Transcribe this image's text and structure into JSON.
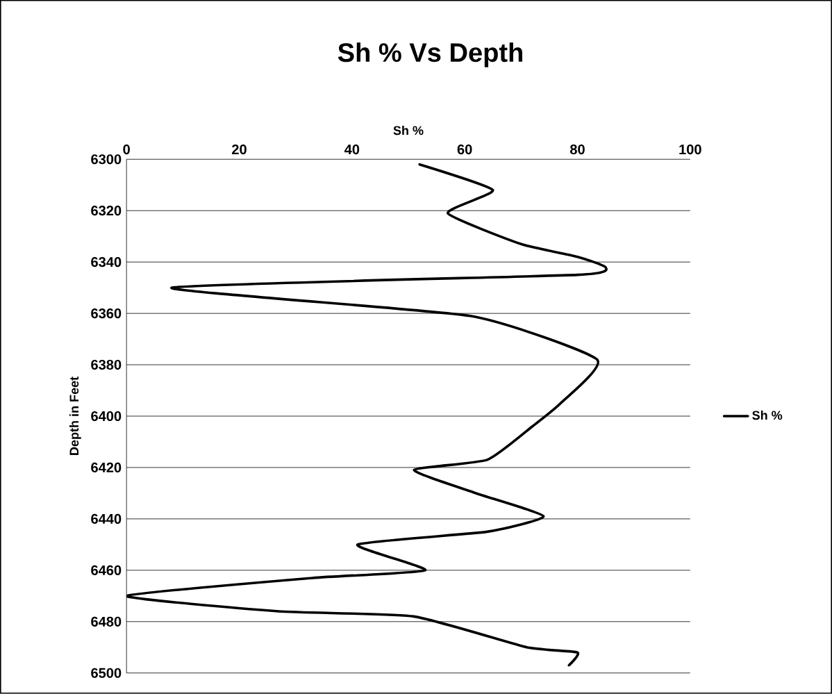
{
  "chart_data": {
    "type": "line",
    "title": "Sh % Vs Depth",
    "xlabel": "Sh %",
    "ylabel": "Depth in Feet",
    "series": [
      {
        "name": "Sh %",
        "color": "#000000",
        "x": [
          52,
          65,
          57,
          70,
          80,
          85,
          80,
          8,
          61,
          83.5,
          77,
          72,
          64,
          51,
          62,
          74,
          64,
          41,
          53,
          33,
          0,
          27,
          51,
          71,
          80,
          78.5
        ],
        "values": [
          6302,
          6312,
          6321,
          6333,
          6338,
          6342,
          6345,
          6350,
          6361,
          6378,
          6395,
          6404,
          6417,
          6421,
          6430,
          6439,
          6445,
          6450,
          6460,
          6463,
          6470,
          6476,
          6478,
          6490,
          6492,
          6497
        ]
      }
    ],
    "xlim": [
      0,
      100
    ],
    "xticks": [
      0,
      20,
      40,
      60,
      80,
      100
    ],
    "ylim": [
      6500,
      6300
    ],
    "yticks": [
      6300,
      6320,
      6340,
      6360,
      6380,
      6400,
      6420,
      6440,
      6460,
      6480,
      6500
    ],
    "grid": "y",
    "legend": "right",
    "marker": "none",
    "line_style": "solid"
  }
}
